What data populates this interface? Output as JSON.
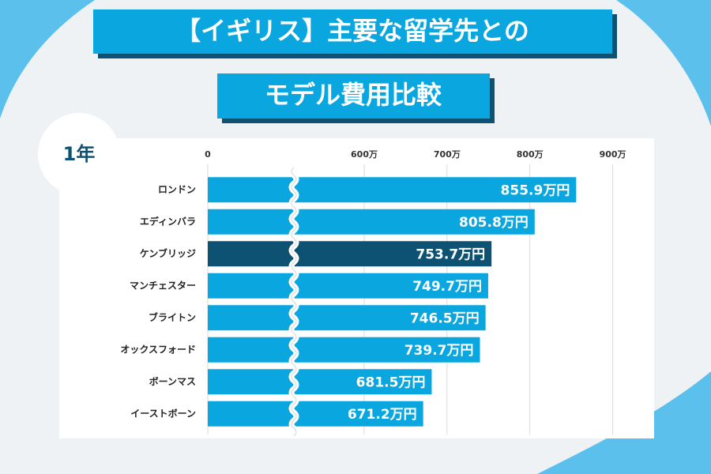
{
  "chart_data": {
    "type": "bar",
    "orientation": "horizontal",
    "title": "【イギリス】主要な留学先との",
    "subtitle": "モデル費用比較",
    "badge": "1年",
    "categories": [
      "ロンドン",
      "エディンバラ",
      "ケンブリッジ",
      "マンチェスター",
      "ブライトン",
      "オックスフォード",
      "ボーンマス",
      "イーストボーン"
    ],
    "values": [
      855.9,
      805.8,
      753.7,
      749.7,
      746.5,
      739.7,
      681.5,
      671.2
    ],
    "value_labels": [
      "855.9万円",
      "805.8万円",
      "753.7万円",
      "749.7万円",
      "746.5万円",
      "739.7万円",
      "681.5万円",
      "671.2万円"
    ],
    "colors": [
      "#0aa6e0",
      "#0aa6e0",
      "#0d5272",
      "#0aa6e0",
      "#0aa6e0",
      "#0aa6e0",
      "#0aa6e0",
      "#0aa6e0"
    ],
    "xlim": [
      0,
      950
    ],
    "xticks": [
      0,
      {
        "value": 600,
        "label": "600万"
      },
      {
        "value": 700,
        "label": "700万"
      },
      {
        "value": 800,
        "label": "800万"
      },
      {
        "value": 900,
        "label": "900万"
      }
    ],
    "axis_break": true,
    "grid": true
  }
}
